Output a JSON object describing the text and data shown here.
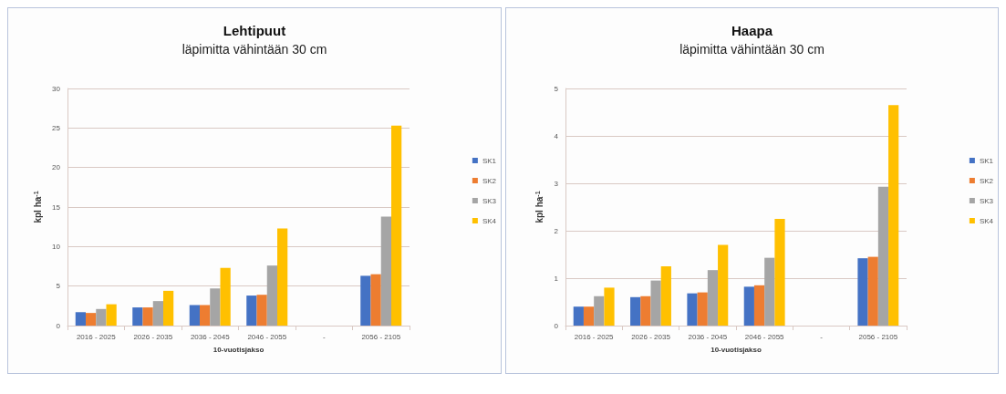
{
  "chart_data": [
    {
      "type": "bar",
      "title": "Lehtipuut",
      "subtitle": "läpimitta vähintään 30 cm",
      "xlabel": "10-vuotisjakso",
      "ylabel": "kpl ha$^{-1}$",
      "categories": [
        "2016 - 2025",
        "2026 - 2035",
        "2036 - 2045",
        "2046 - 2055",
        "-",
        "2056 - 2105"
      ],
      "series": [
        {
          "name": "SK1",
          "color": "#4472c4",
          "values": [
            1.7,
            2.3,
            2.6,
            3.8,
            null,
            6.3
          ]
        },
        {
          "name": "SK2",
          "color": "#ed7d31",
          "values": [
            1.6,
            2.3,
            2.6,
            3.9,
            null,
            6.5
          ]
        },
        {
          "name": "SK3",
          "color": "#a5a5a5",
          "values": [
            2.1,
            3.1,
            4.7,
            7.6,
            null,
            13.8
          ]
        },
        {
          "name": "SK4",
          "color": "#ffc000",
          "values": [
            2.7,
            4.4,
            7.3,
            12.3,
            null,
            25.3
          ]
        }
      ],
      "ylim": [
        0,
        30
      ],
      "yticks": [
        0,
        5,
        10,
        15,
        20,
        25,
        30
      ],
      "grid": "y",
      "legend": "right"
    },
    {
      "type": "bar",
      "title": "Haapa",
      "subtitle": "läpimitta vähintään 30 cm",
      "xlabel": "10-vuotisjakso",
      "ylabel": "kpl ha$^{-1}$",
      "categories": [
        "2016 - 2025",
        "2026 - 2035",
        "2036 - 2045",
        "2046 - 2055",
        "-",
        "2056 - 2105"
      ],
      "series": [
        {
          "name": "SK1",
          "color": "#4472c4",
          "values": [
            0.4,
            0.6,
            0.68,
            0.82,
            null,
            1.42
          ]
        },
        {
          "name": "SK2",
          "color": "#ed7d31",
          "values": [
            0.4,
            0.62,
            0.7,
            0.85,
            null,
            1.45
          ]
        },
        {
          "name": "SK3",
          "color": "#a5a5a5",
          "values": [
            0.62,
            0.95,
            1.17,
            1.43,
            null,
            2.93
          ]
        },
        {
          "name": "SK4",
          "color": "#ffc000",
          "values": [
            0.8,
            1.25,
            1.7,
            2.25,
            null,
            4.65
          ]
        }
      ],
      "ylim": [
        0,
        5
      ],
      "yticks": [
        0,
        1,
        2,
        3,
        4,
        5
      ],
      "grid": "y",
      "legend": "right"
    }
  ]
}
